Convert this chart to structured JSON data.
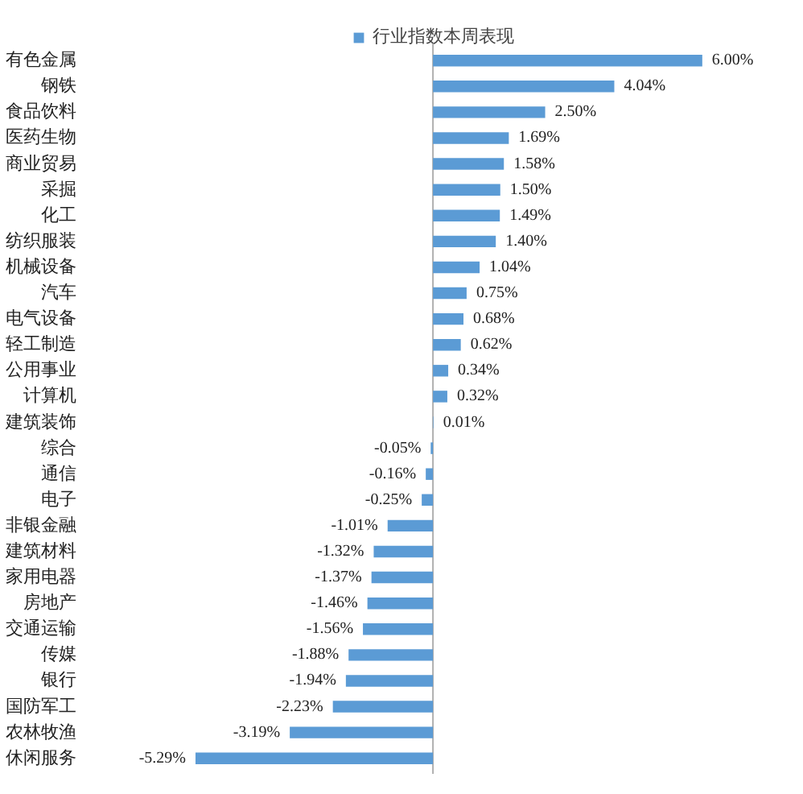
{
  "chart_data": {
    "type": "bar",
    "orientation": "horizontal",
    "legend": "top",
    "tick_labels": "y",
    "categories": [
      "有色金属",
      "钢铁",
      "食品饮料",
      "医药生物",
      "商业贸易",
      "采掘",
      "化工",
      "纺织服装",
      "机械设备",
      "汽车",
      "电气设备",
      "轻工制造",
      "公用事业",
      "计算机",
      "建筑装饰",
      "综合",
      "通信",
      "电子",
      "非银金融",
      "建筑材料",
      "家用电器",
      "房地产",
      "交通运输",
      "传媒",
      "银行",
      "国防军工",
      "农林牧渔",
      "休闲服务"
    ],
    "series": [
      {
        "name": "行业指数本周表现",
        "color": "#5b9bd5",
        "values": [
          6.0,
          4.04,
          2.5,
          1.69,
          1.58,
          1.5,
          1.49,
          1.4,
          1.04,
          0.75,
          0.68,
          0.62,
          0.34,
          0.32,
          0.01,
          -0.05,
          -0.16,
          -0.25,
          -1.01,
          -1.32,
          -1.37,
          -1.46,
          -1.56,
          -1.88,
          -1.94,
          -2.23,
          -3.19,
          -5.29
        ],
        "value_labels": [
          "6.00%",
          "4.04%",
          "2.50%",
          "1.69%",
          "1.58%",
          "1.50%",
          "1.49%",
          "1.40%",
          "1.04%",
          "0.75%",
          "0.68%",
          "0.62%",
          "0.34%",
          "0.32%",
          "0.01%",
          "-0.05%",
          "-0.16%",
          "-0.25%",
          "-1.01%",
          "-1.32%",
          "-1.37%",
          "-1.46%",
          "-1.56%",
          "-1.88%",
          "-1.94%",
          "-2.23%",
          "-3.19%",
          "-5.29%"
        ]
      }
    ]
  }
}
